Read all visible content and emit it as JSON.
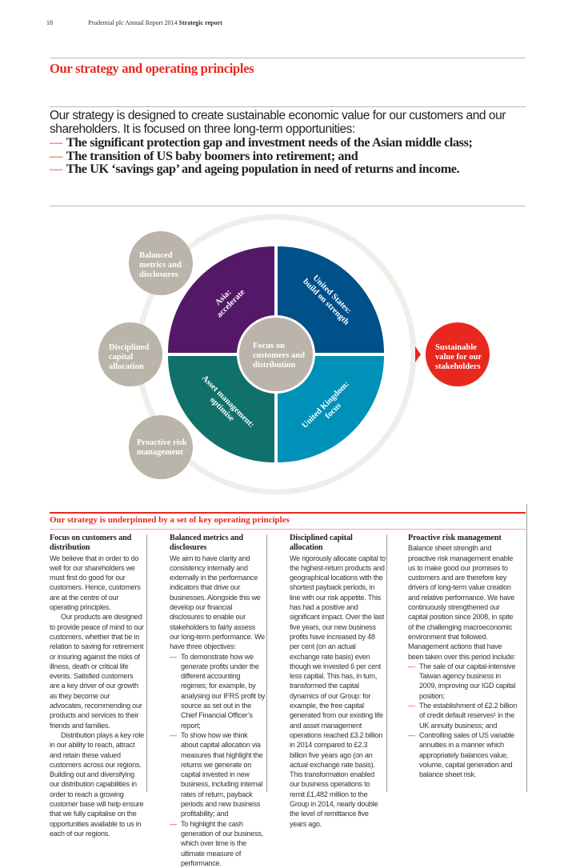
{
  "header": {
    "page_number": "18",
    "document": "Prudential plc  Annual Report 2014",
    "section": "Strategic report"
  },
  "title": "Our strategy and operating principles",
  "intro": {
    "paragraph": "Our strategy is designed to create sustainable economic value for our customers and our shareholders. It is focused on three long-term opportunities:",
    "opportunities": [
      "The significant protection gap and investment needs of the Asian middle class;",
      "The transition of US baby boomers into retirement; and",
      "The UK ‘savings gap’ and ageing population in need of returns and income."
    ]
  },
  "diagram": {
    "center": [
      "Focus on",
      "customers and",
      "distribution"
    ],
    "quadrants": {
      "asia": [
        "Asia:",
        "accelerate"
      ],
      "us": [
        "United States:",
        "build on strength"
      ],
      "asset": [
        "Asset management:",
        "optimise"
      ],
      "uk": [
        "United Kingdom:",
        "focus"
      ]
    },
    "principles": {
      "balanced": [
        "Balanced",
        "metrics and",
        "disclosures"
      ],
      "disciplined": [
        "Disciplined",
        "capital",
        "allocation"
      ],
      "proactive": [
        "Proactive risk",
        "management"
      ]
    },
    "outcome": [
      "Sustainable",
      "value for our",
      "stakeholders"
    ],
    "colors": {
      "asia": "#541869",
      "us": "#00508a",
      "asset": "#0f716a",
      "uk": "#0091b8",
      "principle": "#bab4aa",
      "outcome": "#e8281e",
      "ring": "#efeee9"
    }
  },
  "principles_section": {
    "heading": "Our strategy is underpinned by a set of key operating principles",
    "columns": [
      {
        "title": "Focus on customers and distribution",
        "paragraphs": [
          "We believe that in order to do well for our shareholders we must first do good for our customers. Hence, customers are at the centre of our operating principles.",
          "Our products are designed to provide peace of mind to our customers, whether that be in relation to saving for retirement or insuring against the risks of illness, death or critical life events. Satisfied customers are a key driver of our growth as they become our advocates, recommending our products and services to their friends and families.",
          "Distribution plays a key role in our ability to reach, attract and retain these valued customers across our regions. Building out and diversifying our distribution capabilities in order to reach a growing customer base will help ensure that we fully capitalise on the opportunities available to us in each of our regions."
        ]
      },
      {
        "title": "Balanced metrics and disclosures",
        "intro": "We aim to have clarity and consistency internally and externally in the performance indicators that drive our businesses. Alongside this we develop our financial disclosures to enable our stakeholders to fairly assess our long-term performance. We have three objectives:",
        "bullets": [
          "To demonstrate how we generate profits under the different accounting regimes; for example, by analysing our IFRS profit by source as set out in the Chief Financial Officer’s report;",
          "To show how we think about capital allocation via measures that highlight the returns we generate on capital invested in new business, including internal rates of return, payback periods and new business profitability; and",
          "To highlight the cash generation of our business, which over time is the ultimate measure of performance."
        ]
      },
      {
        "title": "Disciplined capital allocation",
        "intro": "We rigorously allocate capital to the highest-return products and geographical locations with the shortest payback periods, in line with our risk appetite. This has had a positive and significant impact. Over the last five years, our new business profits have increased by 48 per cent (on an actual exchange rate basis) even though we invested 6 per cent less capital. This has, in turn, transformed the capital dynamics of our Group: for example, the free capital generated from our existing life and asset management operations reached £3.2 billion in 2014 compared to £2.3 billion five years ago (on an actual exchange rate basis). This transformation enabled our business operations to remit £1,482 million to the Group in 2014, nearly double the level of remittance five years ago."
      },
      {
        "title": "Proactive risk management",
        "intro": "Balance sheet strength and proactive risk management enable us to make good our promises to customers and are therefore key drivers of long-term value creation and relative performance. We have continuously strengthened our capital position since 2008, in spite of the challenging macroeconomic environment that followed. Management actions that have been taken over this period include:",
        "bullets": [
          "The sale of our capital-intensive Taiwan agency business in 2009, improving our IGD capital position;",
          "The establishment of £2.2 billion of credit default reserves¹ in the UK annuity business; and",
          "Controlling sales of US variable annuities in a manner which appropriately balances value, volume, capital generation and balance sheet risk."
        ]
      }
    ]
  }
}
